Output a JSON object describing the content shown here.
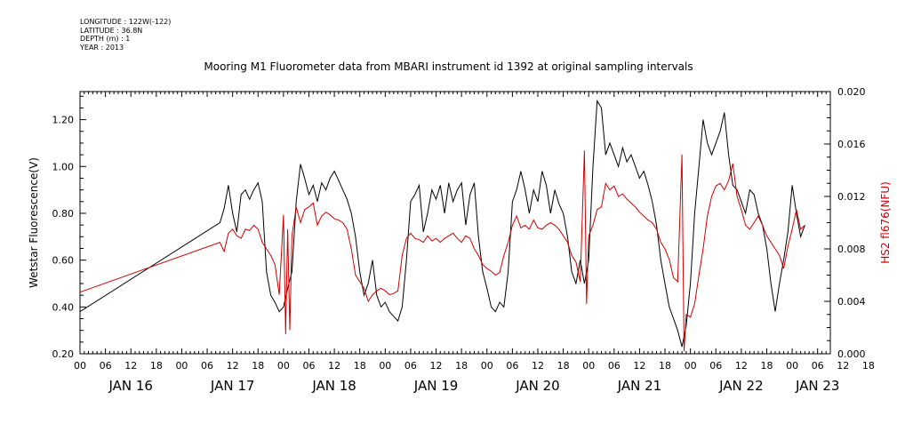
{
  "meta": {
    "longitude": "LONGITUDE : 122W(-122)",
    "latitude": "LATITUDE : 36.8N",
    "depth": "DEPTH (m) : 1",
    "year": "YEAR : 2013"
  },
  "chart_data": {
    "type": "line",
    "title": "Mooring M1 Fluorometer data from MBARI instrument id 1392 at original sampling intervals",
    "xlabel": "",
    "ylabel": "Wetstar Fluorescence(V)",
    "y2label": "HS2 fl676(NFU)",
    "xlim": [
      0,
      177
    ],
    "ylim": [
      0.2,
      1.32
    ],
    "y2lim": [
      0.0,
      0.02
    ],
    "yticks": [
      "0.20",
      "0.40",
      "0.60",
      "0.80",
      "1.00",
      "1.20"
    ],
    "y2ticks": [
      "0.000",
      "0.004",
      "0.008",
      "0.012",
      "0.016",
      "0.020"
    ],
    "hour_ticks": [
      "00",
      "06",
      "12",
      "18",
      "00",
      "06",
      "12",
      "18",
      "00",
      "06",
      "12",
      "18",
      "00",
      "06",
      "12",
      "18",
      "00",
      "06",
      "12",
      "18",
      "00",
      "06",
      "12",
      "18",
      "00",
      "06",
      "12",
      "18",
      "00",
      "06",
      "12",
      "18"
    ],
    "day_labels": [
      "JAN 16",
      "JAN 17",
      "JAN 18",
      "JAN 19",
      "JAN 20",
      "JAN 21",
      "JAN 22",
      "JAN 23"
    ],
    "grid": false,
    "series": [
      {
        "name": "Wetstar Fluorescence(V)",
        "color": "#000000",
        "axis": "left",
        "points": [
          [
            0,
            0.38
          ],
          [
            33,
            0.76
          ],
          [
            34,
            0.82
          ],
          [
            35,
            0.92
          ],
          [
            36,
            0.8
          ],
          [
            37,
            0.72
          ],
          [
            38,
            0.88
          ],
          [
            39,
            0.9
          ],
          [
            40,
            0.86
          ],
          [
            41,
            0.9
          ],
          [
            42,
            0.93
          ],
          [
            43,
            0.85
          ],
          [
            44,
            0.55
          ],
          [
            45,
            0.45
          ],
          [
            46,
            0.42
          ],
          [
            47,
            0.38
          ],
          [
            48,
            0.4
          ],
          [
            49,
            0.48
          ],
          [
            50,
            0.55
          ],
          [
            51,
            0.85
          ],
          [
            52,
            1.01
          ],
          [
            53,
            0.95
          ],
          [
            54,
            0.88
          ],
          [
            55,
            0.92
          ],
          [
            56,
            0.85
          ],
          [
            57,
            0.93
          ],
          [
            58,
            0.9
          ],
          [
            59,
            0.95
          ],
          [
            60,
            0.98
          ],
          [
            61,
            0.94
          ],
          [
            62,
            0.9
          ],
          [
            63,
            0.86
          ],
          [
            64,
            0.8
          ],
          [
            65,
            0.7
          ],
          [
            66,
            0.55
          ],
          [
            67,
            0.45
          ],
          [
            68,
            0.5
          ],
          [
            69,
            0.6
          ],
          [
            70,
            0.45
          ],
          [
            71,
            0.4
          ],
          [
            72,
            0.42
          ],
          [
            73,
            0.38
          ],
          [
            74,
            0.36
          ],
          [
            75,
            0.34
          ],
          [
            76,
            0.4
          ],
          [
            77,
            0.6
          ],
          [
            78,
            0.85
          ],
          [
            79,
            0.88
          ],
          [
            80,
            0.92
          ],
          [
            81,
            0.72
          ],
          [
            82,
            0.8
          ],
          [
            83,
            0.9
          ],
          [
            84,
            0.86
          ],
          [
            85,
            0.92
          ],
          [
            86,
            0.8
          ],
          [
            87,
            0.93
          ],
          [
            88,
            0.85
          ],
          [
            89,
            0.9
          ],
          [
            90,
            0.93
          ],
          [
            91,
            0.75
          ],
          [
            92,
            0.88
          ],
          [
            93,
            0.93
          ],
          [
            94,
            0.7
          ],
          [
            95,
            0.55
          ],
          [
            96,
            0.48
          ],
          [
            97,
            0.4
          ],
          [
            98,
            0.38
          ],
          [
            99,
            0.42
          ],
          [
            100,
            0.4
          ],
          [
            101,
            0.55
          ],
          [
            102,
            0.85
          ],
          [
            103,
            0.9
          ],
          [
            104,
            0.98
          ],
          [
            105,
            0.9
          ],
          [
            106,
            0.8
          ],
          [
            107,
            0.9
          ],
          [
            108,
            0.85
          ],
          [
            109,
            0.98
          ],
          [
            110,
            0.92
          ],
          [
            111,
            0.8
          ],
          [
            112,
            0.9
          ],
          [
            113,
            0.84
          ],
          [
            114,
            0.8
          ],
          [
            115,
            0.7
          ],
          [
            116,
            0.55
          ],
          [
            117,
            0.5
          ],
          [
            118,
            0.6
          ],
          [
            119,
            0.5
          ],
          [
            120,
            0.6
          ],
          [
            121,
            1.0
          ],
          [
            122,
            1.28
          ],
          [
            123,
            1.25
          ],
          [
            124,
            1.05
          ],
          [
            125,
            1.1
          ],
          [
            126,
            1.05
          ],
          [
            127,
            1.0
          ],
          [
            128,
            1.08
          ],
          [
            129,
            1.02
          ],
          [
            130,
            1.05
          ],
          [
            131,
            1.0
          ],
          [
            132,
            0.95
          ],
          [
            133,
            0.98
          ],
          [
            134,
            0.92
          ],
          [
            135,
            0.85
          ],
          [
            136,
            0.75
          ],
          [
            137,
            0.6
          ],
          [
            138,
            0.5
          ],
          [
            139,
            0.4
          ],
          [
            140,
            0.35
          ],
          [
            141,
            0.3
          ],
          [
            142,
            0.23
          ],
          [
            143,
            0.32
          ],
          [
            144,
            0.5
          ],
          [
            145,
            0.8
          ],
          [
            146,
            1.0
          ],
          [
            147,
            1.2
          ],
          [
            148,
            1.1
          ],
          [
            149,
            1.05
          ],
          [
            150,
            1.1
          ],
          [
            151,
            1.15
          ],
          [
            152,
            1.23
          ],
          [
            153,
            1.05
          ],
          [
            154,
            0.92
          ],
          [
            155,
            0.9
          ],
          [
            156,
            0.85
          ],
          [
            157,
            0.8
          ],
          [
            158,
            0.9
          ],
          [
            159,
            0.88
          ],
          [
            160,
            0.8
          ],
          [
            161,
            0.75
          ],
          [
            162,
            0.65
          ],
          [
            163,
            0.5
          ],
          [
            164,
            0.38
          ],
          [
            165,
            0.5
          ],
          [
            166,
            0.6
          ],
          [
            167,
            0.72
          ],
          [
            168,
            0.92
          ],
          [
            169,
            0.8
          ],
          [
            170,
            0.7
          ],
          [
            171,
            0.75
          ]
        ]
      },
      {
        "name": "HS2 fl676(NFU)",
        "color": "#d00000",
        "axis": "right",
        "points": [
          [
            0,
            0.0047
          ],
          [
            33,
            0.0085
          ],
          [
            34,
            0.0078
          ],
          [
            35,
            0.0092
          ],
          [
            36,
            0.0095
          ],
          [
            37,
            0.009
          ],
          [
            38,
            0.0088
          ],
          [
            39,
            0.0095
          ],
          [
            40,
            0.0094
          ],
          [
            41,
            0.0098
          ],
          [
            42,
            0.0095
          ],
          [
            43,
            0.0085
          ],
          [
            44,
            0.008
          ],
          [
            45,
            0.0075
          ],
          [
            46,
            0.0068
          ],
          [
            47,
            0.0045
          ],
          [
            48,
            0.0106
          ],
          [
            48.5,
            0.0015
          ],
          [
            49,
            0.0095
          ],
          [
            49.5,
            0.0018
          ],
          [
            50,
            0.009
          ],
          [
            51,
            0.0112
          ],
          [
            52,
            0.01
          ],
          [
            53,
            0.011
          ],
          [
            54,
            0.0112
          ],
          [
            55,
            0.0115
          ],
          [
            56,
            0.0098
          ],
          [
            57,
            0.0105
          ],
          [
            58,
            0.0108
          ],
          [
            59,
            0.0106
          ],
          [
            60,
            0.0103
          ],
          [
            61,
            0.0102
          ],
          [
            62,
            0.01
          ],
          [
            63,
            0.0095
          ],
          [
            64,
            0.008
          ],
          [
            65,
            0.006
          ],
          [
            66,
            0.0055
          ],
          [
            67,
            0.005
          ],
          [
            68,
            0.004
          ],
          [
            69,
            0.0045
          ],
          [
            70,
            0.0048
          ],
          [
            71,
            0.005
          ],
          [
            72,
            0.0048
          ],
          [
            73,
            0.0045
          ],
          [
            74,
            0.0046
          ],
          [
            75,
            0.0048
          ],
          [
            76,
            0.0075
          ],
          [
            77,
            0.0088
          ],
          [
            78,
            0.0092
          ],
          [
            79,
            0.0088
          ],
          [
            80,
            0.0087
          ],
          [
            81,
            0.0085
          ],
          [
            82,
            0.009
          ],
          [
            83,
            0.0086
          ],
          [
            84,
            0.0088
          ],
          [
            85,
            0.0085
          ],
          [
            86,
            0.0088
          ],
          [
            87,
            0.009
          ],
          [
            88,
            0.0092
          ],
          [
            89,
            0.0088
          ],
          [
            90,
            0.0085
          ],
          [
            91,
            0.009
          ],
          [
            92,
            0.0088
          ],
          [
            93,
            0.008
          ],
          [
            94,
            0.0075
          ],
          [
            95,
            0.0068
          ],
          [
            96,
            0.0065
          ],
          [
            97,
            0.0063
          ],
          [
            98,
            0.006
          ],
          [
            99,
            0.0062
          ],
          [
            100,
            0.0075
          ],
          [
            101,
            0.0085
          ],
          [
            102,
            0.0098
          ],
          [
            103,
            0.0105
          ],
          [
            104,
            0.0096
          ],
          [
            105,
            0.0098
          ],
          [
            106,
            0.0095
          ],
          [
            107,
            0.0102
          ],
          [
            108,
            0.0096
          ],
          [
            109,
            0.0095
          ],
          [
            110,
            0.0098
          ],
          [
            111,
            0.01
          ],
          [
            112,
            0.0098
          ],
          [
            113,
            0.0095
          ],
          [
            114,
            0.009
          ],
          [
            115,
            0.0085
          ],
          [
            116,
            0.0075
          ],
          [
            117,
            0.007
          ],
          [
            118,
            0.0055
          ],
          [
            119,
            0.0155
          ],
          [
            119.5,
            0.0038
          ],
          [
            120,
            0.009
          ],
          [
            121,
            0.0098
          ],
          [
            122,
            0.011
          ],
          [
            123,
            0.0112
          ],
          [
            124,
            0.013
          ],
          [
            125,
            0.0125
          ],
          [
            126,
            0.0128
          ],
          [
            127,
            0.012
          ],
          [
            128,
            0.0122
          ],
          [
            129,
            0.0118
          ],
          [
            130,
            0.0115
          ],
          [
            131,
            0.0112
          ],
          [
            132,
            0.0108
          ],
          [
            133,
            0.0105
          ],
          [
            134,
            0.0102
          ],
          [
            135,
            0.01
          ],
          [
            136,
            0.0095
          ],
          [
            137,
            0.0085
          ],
          [
            138,
            0.008
          ],
          [
            139,
            0.0072
          ],
          [
            140,
            0.0058
          ],
          [
            141,
            0.0055
          ],
          [
            142,
            0.0152
          ],
          [
            142.5,
            0.0002
          ],
          [
            143,
            0.003
          ],
          [
            144,
            0.0028
          ],
          [
            145,
            0.0038
          ],
          [
            146,
            0.006
          ],
          [
            147,
            0.008
          ],
          [
            148,
            0.0105
          ],
          [
            149,
            0.012
          ],
          [
            150,
            0.0128
          ],
          [
            151,
            0.013
          ],
          [
            152,
            0.0125
          ],
          [
            153,
            0.0132
          ],
          [
            154,
            0.0145
          ],
          [
            155,
            0.012
          ],
          [
            156,
            0.011
          ],
          [
            157,
            0.0098
          ],
          [
            158,
            0.0095
          ],
          [
            159,
            0.01
          ],
          [
            160,
            0.0105
          ],
          [
            161,
            0.0098
          ],
          [
            162,
            0.009
          ],
          [
            163,
            0.0085
          ],
          [
            164,
            0.008
          ],
          [
            165,
            0.0075
          ],
          [
            166,
            0.0065
          ],
          [
            167,
            0.0082
          ],
          [
            168,
            0.0095
          ],
          [
            169,
            0.011
          ],
          [
            170,
            0.0095
          ],
          [
            171,
            0.0098
          ]
        ]
      }
    ]
  }
}
